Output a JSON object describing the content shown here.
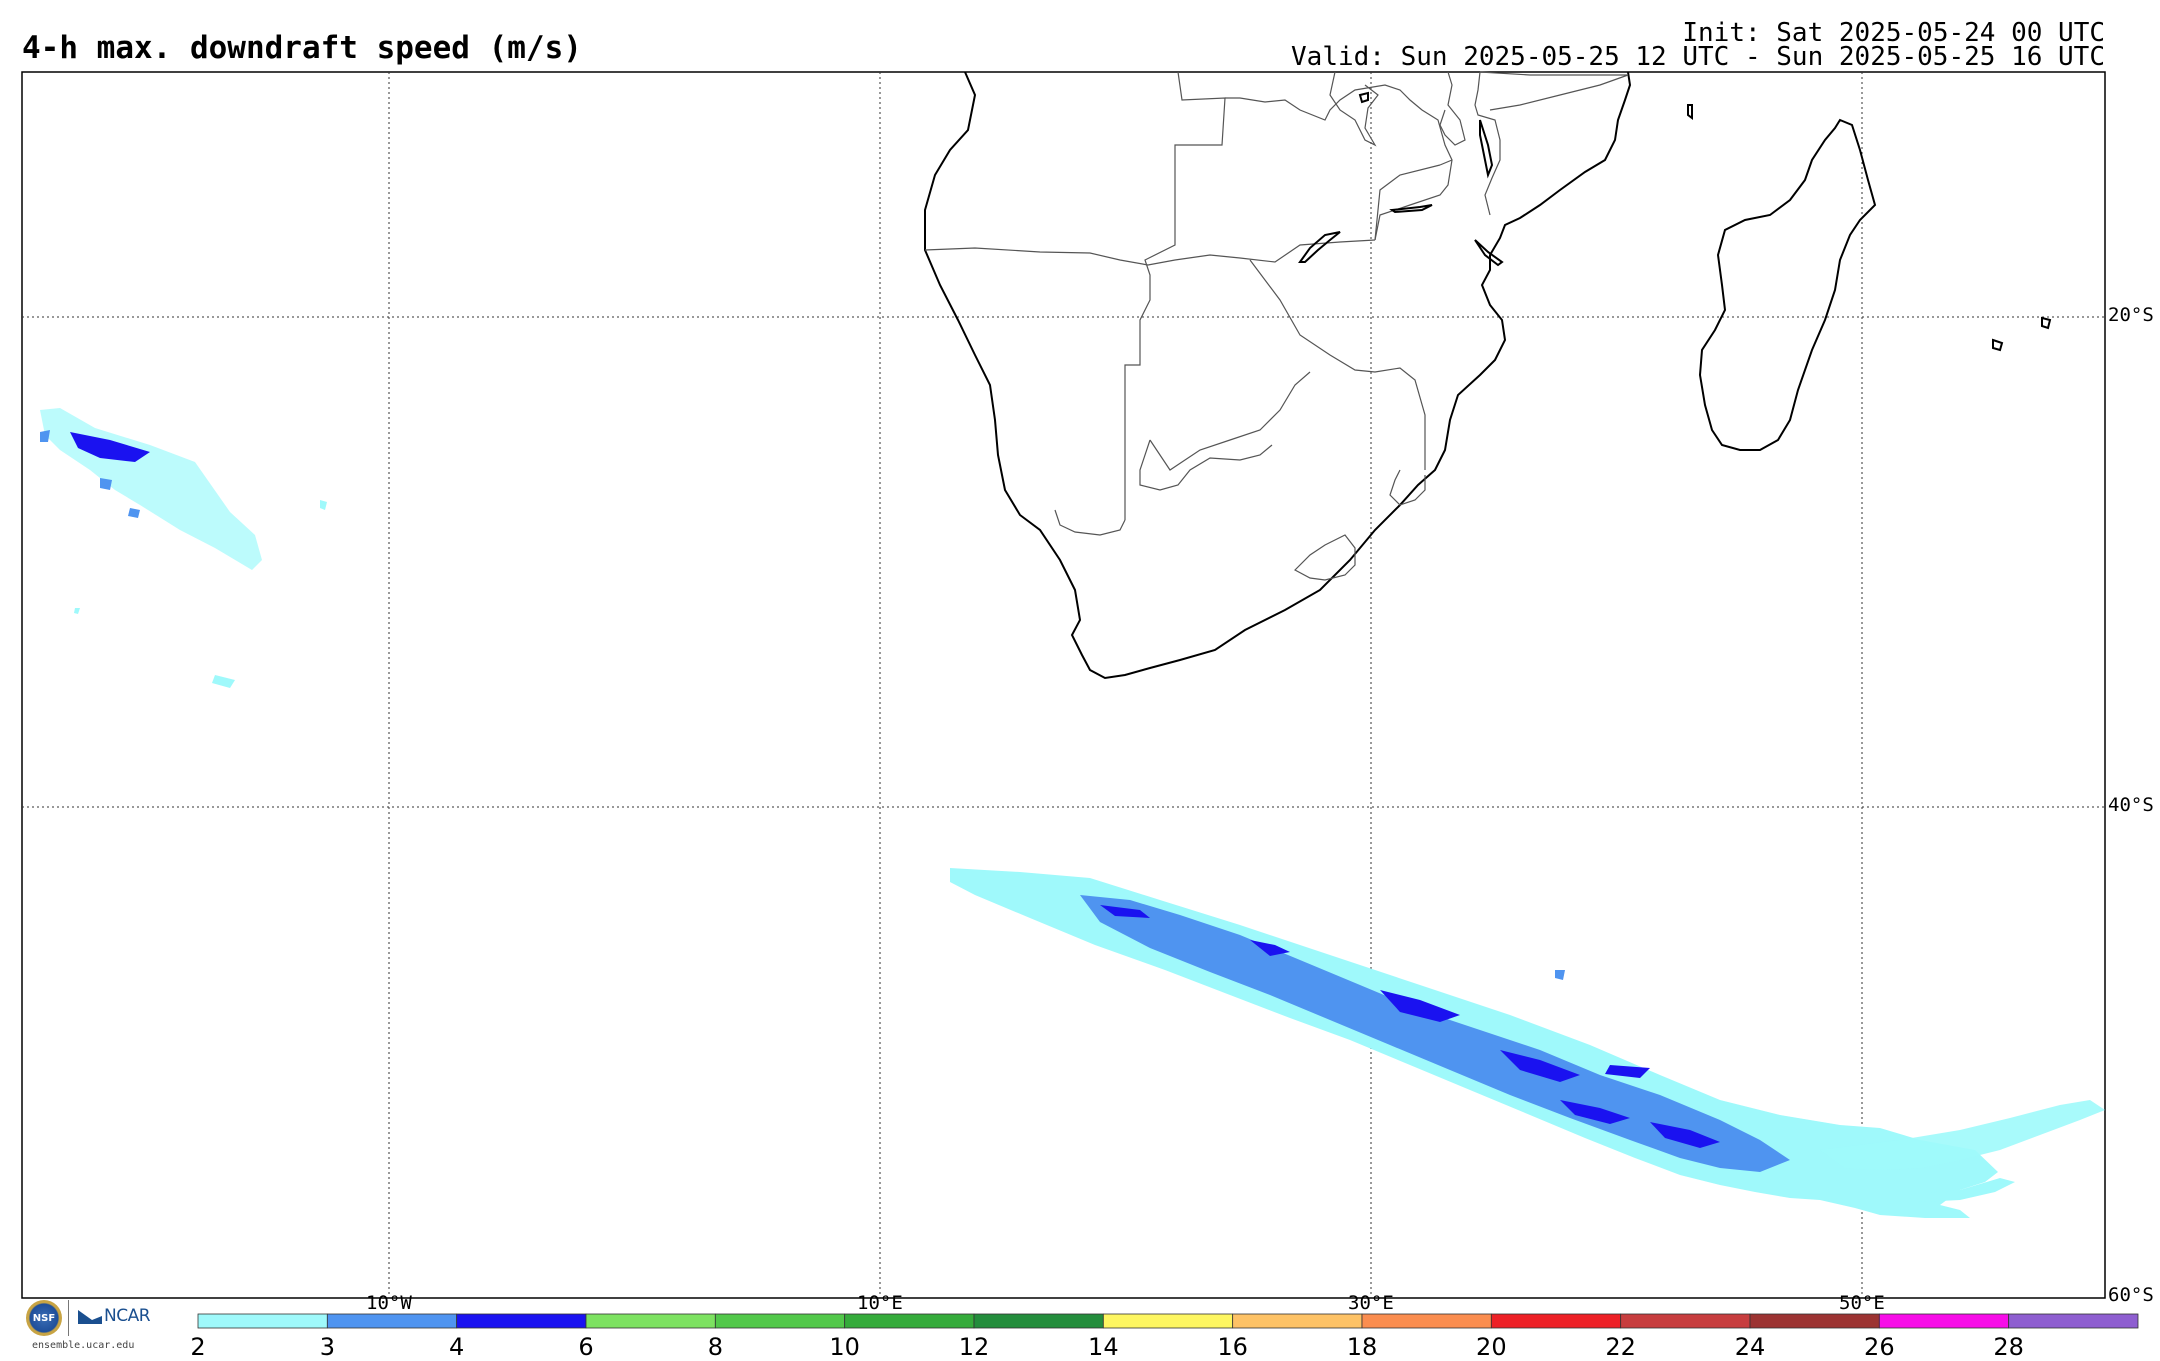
{
  "header": {
    "title": "4-h max. downdraft speed (m/s)",
    "init": "Init: Sat 2025-05-24 00 UTC",
    "valid": "Valid: Sun 2025-05-25 12 UTC - Sun 2025-05-25 16 UTC"
  },
  "map": {
    "region": "Southern Africa and South Atlantic / Indian Ocean",
    "longitude_labels": [
      "10°W",
      "10°E",
      "30°E",
      "50°E"
    ],
    "latitude_labels": [
      "20°S",
      "40°S",
      "60°S"
    ],
    "gridlines": "dotted",
    "features": {
      "cold_front_band": {
        "description": "elongated downdraft band SE of South Africa",
        "max_value_ms": 4
      },
      "west_patch": {
        "description": "small downdraft patch near 20-25°S, 25°W",
        "max_value_ms": 4
      }
    }
  },
  "colorbar": {
    "units": "m/s",
    "tick_labels": [
      "2",
      "3",
      "4",
      "6",
      "8",
      "10",
      "12",
      "14",
      "16",
      "18",
      "20",
      "22",
      "24",
      "26",
      "28"
    ],
    "colors": [
      "#9ff9fb",
      "#4f94f0",
      "#1a12f0",
      "#7de261",
      "#52c84a",
      "#35ab3b",
      "#238d3c",
      "#fdf661",
      "#fdc266",
      "#fa8d4f",
      "#ed2026",
      "#c73d3e",
      "#9c3332",
      "#f70de8",
      "#8e5ed0"
    ]
  },
  "branding": {
    "nsf": "NSF",
    "ncar": "NCAR",
    "url": "ensemble.ucar.edu"
  },
  "colors": {
    "light": "#9ff9fb",
    "mid": "#4f94f0",
    "dark": "#1a12f0",
    "coast": "#000000",
    "border": "#555555"
  }
}
